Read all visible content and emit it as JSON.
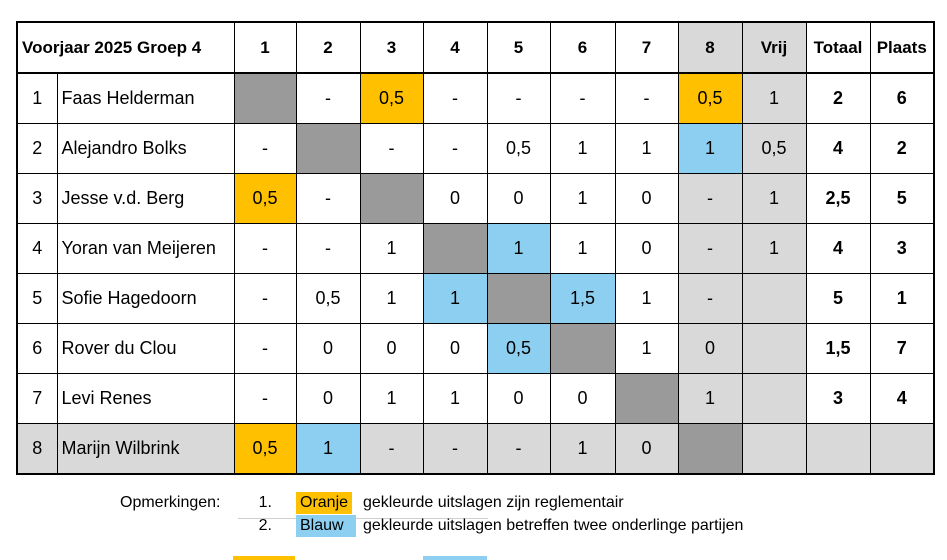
{
  "title": "Voorjaar 2025 Groep 4",
  "columns": [
    "1",
    "2",
    "3",
    "4",
    "5",
    "6",
    "7",
    "8",
    "Vrij",
    "Totaal",
    "Plaats"
  ],
  "rows": [
    {
      "num": "1",
      "name": "Faas Helderman",
      "cells": [
        "",
        "-",
        "0,5",
        "-",
        "-",
        "-",
        "-",
        "0,5",
        "1"
      ],
      "totaal": "2",
      "plaats": "6"
    },
    {
      "num": "2",
      "name": "Alejandro Bolks",
      "cells": [
        "-",
        "",
        "-",
        "-",
        "0,5",
        "1",
        "1",
        "1",
        "0,5"
      ],
      "totaal": "4",
      "plaats": "2"
    },
    {
      "num": "3",
      "name": "Jesse v.d. Berg",
      "cells": [
        "0,5",
        "-",
        "",
        "0",
        "0",
        "1",
        "0",
        "-",
        "1"
      ],
      "totaal": "2,5",
      "plaats": "5"
    },
    {
      "num": "4",
      "name": "Yoran van Meijeren",
      "cells": [
        "-",
        "-",
        "1",
        "",
        "1",
        "1",
        "0",
        "-",
        "1"
      ],
      "totaal": "4",
      "plaats": "3"
    },
    {
      "num": "5",
      "name": "Sofie Hagedoorn",
      "cells": [
        "-",
        "0,5",
        "1",
        "1",
        "",
        "1,5",
        "1",
        "-",
        ""
      ],
      "totaal": "5",
      "plaats": "1"
    },
    {
      "num": "6",
      "name": "Rover du Clou",
      "cells": [
        "-",
        "0",
        "0",
        "0",
        "0,5",
        "",
        "1",
        "0",
        ""
      ],
      "totaal": "1,5",
      "plaats": "7"
    },
    {
      "num": "7",
      "name": "Levi Renes",
      "cells": [
        "-",
        "0",
        "1",
        "1",
        "0",
        "0",
        "",
        "1",
        ""
      ],
      "totaal": "3",
      "plaats": "4"
    },
    {
      "num": "8",
      "name": "Marijn Wilbrink",
      "cells": [
        "0,5",
        "1",
        "-",
        "-",
        "-",
        "1",
        "0",
        "",
        ""
      ],
      "totaal": "",
      "plaats": ""
    }
  ],
  "highlights": {
    "orange": [
      [
        0,
        2
      ],
      [
        0,
        7
      ],
      [
        2,
        0
      ],
      [
        7,
        0
      ]
    ],
    "blue": [
      [
        1,
        7
      ],
      [
        3,
        4
      ],
      [
        4,
        3
      ],
      [
        4,
        5
      ],
      [
        5,
        4
      ],
      [
        7,
        1
      ]
    ]
  },
  "colors": {
    "orange": "#ffc000",
    "blue": "#8dcff0",
    "gray_dark": "#9a9a9a",
    "gray_light": "#d9d9d9"
  },
  "remarks": {
    "label": "Opmerkingen:",
    "items": [
      {
        "num": "1.",
        "chip": "Oranje",
        "text": "gekleurde uitslagen zijn reglementair"
      },
      {
        "num": "2.",
        "chip": "Blauw",
        "text": "gekleurde uitslagen betreffen twee onderlinge partijen"
      }
    ]
  }
}
